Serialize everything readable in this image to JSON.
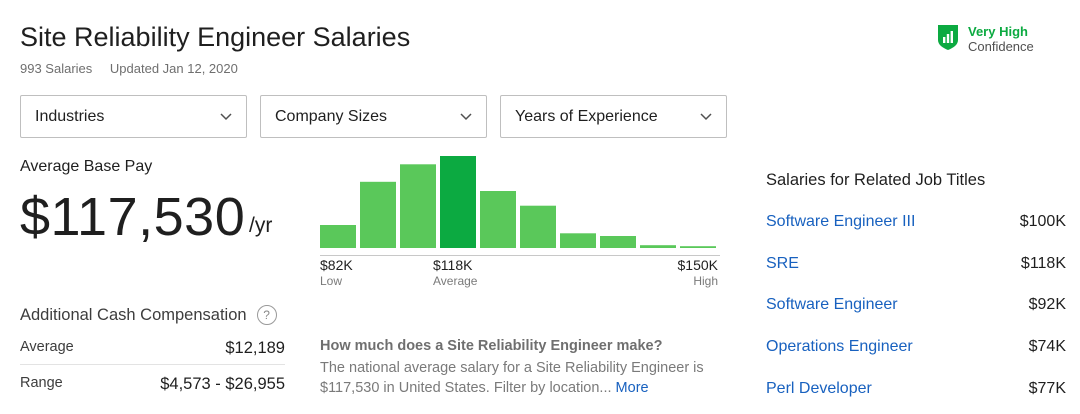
{
  "header": {
    "title": "Site Reliability Engineer Salaries",
    "salary_count": "993 Salaries",
    "updated": "Updated Jan 12, 2020"
  },
  "confidence": {
    "level": "Very High",
    "label": "Confidence",
    "color": "#0caa41",
    "icon": "shield-chart-icon"
  },
  "filters": [
    {
      "label": "Industries"
    },
    {
      "label": "Company Sizes"
    },
    {
      "label": "Years of Experience"
    }
  ],
  "average_base_pay": {
    "label": "Average Base Pay",
    "value": "$117,530",
    "unit": "/yr"
  },
  "histogram": {
    "bar_color": "#5ac85a",
    "highlight_color": "#0caa41",
    "bars": [
      0.25,
      0.72,
      0.91,
      1.0,
      0.62,
      0.46,
      0.16,
      0.13,
      0.03,
      0.02
    ],
    "highlight_index": 3,
    "low": {
      "value": "$82K",
      "caption": "Low"
    },
    "average": {
      "value": "$118K",
      "caption": "Average"
    },
    "high": {
      "value": "$150K",
      "caption": "High"
    }
  },
  "additional_cash": {
    "title": "Additional Cash Compensation",
    "help_icon": "question-circle-icon",
    "help_text": "?",
    "rows": [
      {
        "label": "Average",
        "value": "$12,189"
      },
      {
        "label": "Range",
        "value": "$4,573 - $26,955"
      }
    ]
  },
  "faq": {
    "question": "How much does a Site Reliability Engineer make?",
    "answer": "The national average salary for a Site Reliability Engineer is $117,530 in United States. Filter by location...",
    "more": "More"
  },
  "related": {
    "title": "Salaries for Related Job Titles",
    "items": [
      {
        "job": "Software Engineer III",
        "pay": "$100K"
      },
      {
        "job": "SRE",
        "pay": "$118K"
      },
      {
        "job": "Software Engineer",
        "pay": "$92K"
      },
      {
        "job": "Operations Engineer",
        "pay": "$74K"
      },
      {
        "job": "Perl Developer",
        "pay": "$77K"
      }
    ]
  }
}
